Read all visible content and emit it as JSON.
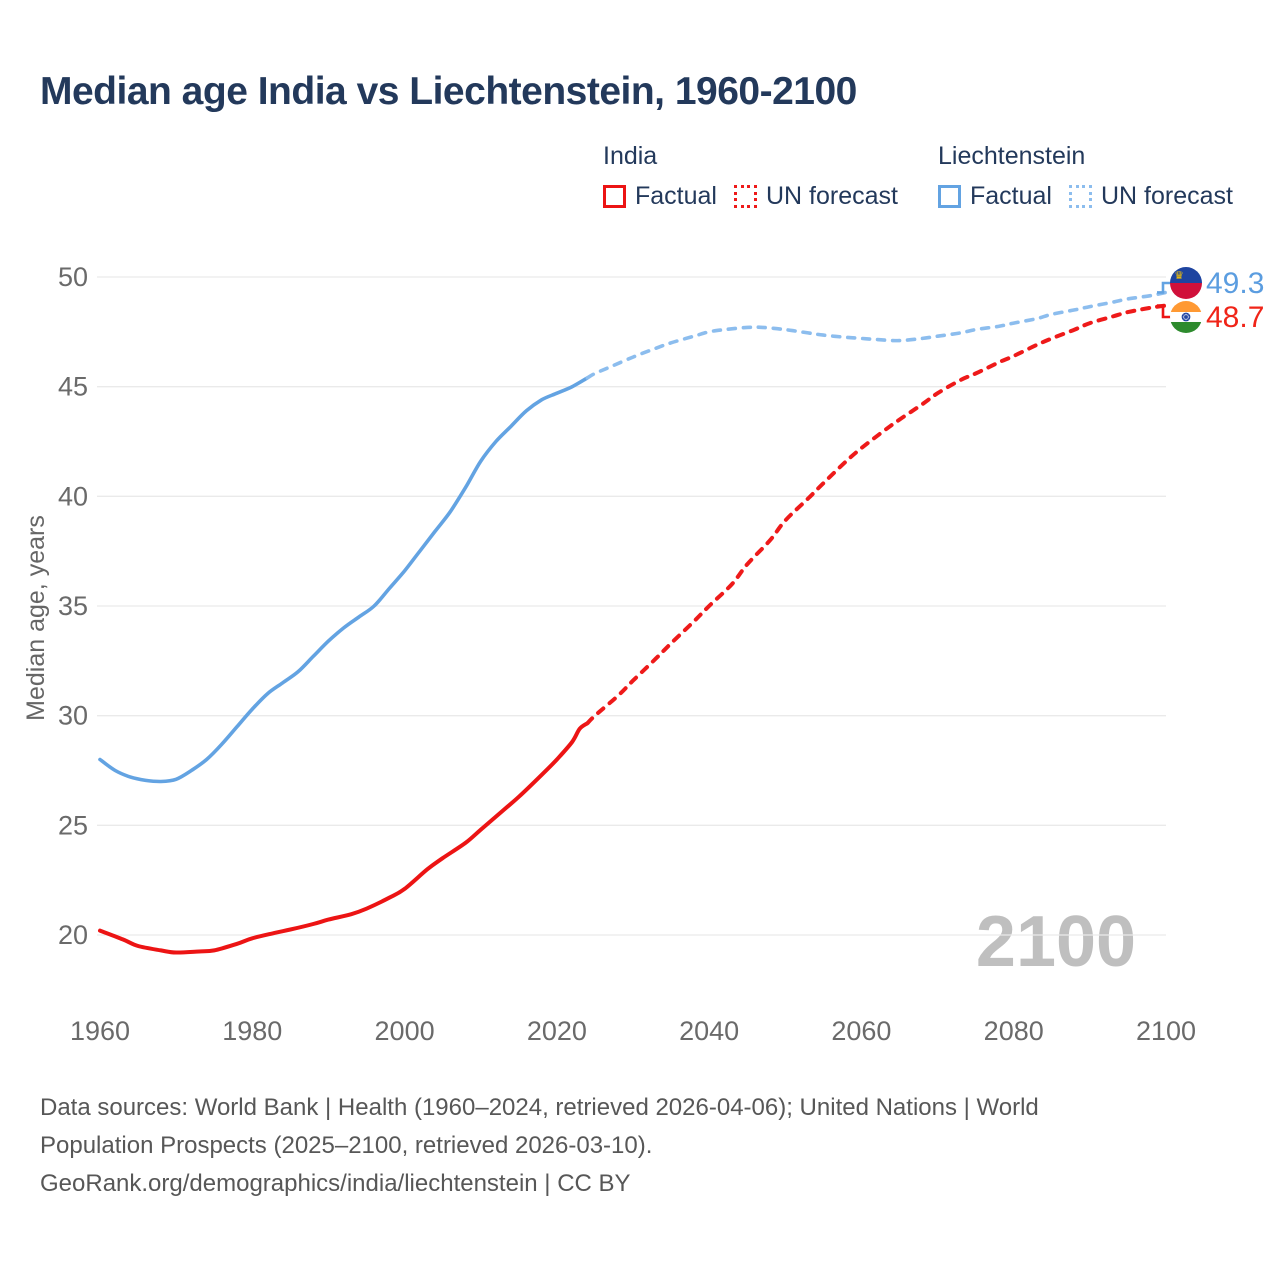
{
  "title": "Median age India vs Liechtenstein, 1960-2100",
  "watermark": "2100",
  "legend": {
    "groups": [
      {
        "name": "India",
        "color": "#ec1414",
        "forecast_color": "#ee1a1a",
        "items": [
          {
            "label": "Factual",
            "style": "solid"
          },
          {
            "label": "UN forecast",
            "style": "dotted"
          }
        ]
      },
      {
        "name": "Liechtenstein",
        "color": "#63a3e2",
        "forecast_color": "#8cbdee",
        "items": [
          {
            "label": "Factual",
            "style": "solid"
          },
          {
            "label": "UN forecast",
            "style": "dotted"
          }
        ]
      }
    ]
  },
  "footer": {
    "lines": [
      "Data sources: World Bank | Health (1960–2024, retrieved 2026-04-06); United Nations | World",
      "Population Prospects (2025–2100, retrieved 2026-03-10).",
      "GeoRank.org/demographics/india/liechtenstein | CC BY"
    ]
  },
  "chart_data": {
    "type": "line",
    "title": "Median age India vs Liechtenstein, 1960-2100",
    "xlabel": "",
    "ylabel": "Median age, years",
    "xlim": [
      1960,
      2100
    ],
    "ylim": [
      20,
      50
    ],
    "grid": "horizontal",
    "legend_position": "top",
    "x_ticks": [
      1960,
      1980,
      2000,
      2020,
      2040,
      2060,
      2080,
      2100
    ],
    "y_ticks": [
      20,
      25,
      30,
      35,
      40,
      45,
      50
    ],
    "watermark_color": "#bfbfbf",
    "gridline_color": "#eaeaea",
    "axis_text_color": "#6a6a6a",
    "series": [
      {
        "id": "liechtenstein-factual",
        "name": "Liechtenstein Factual",
        "color": "#63a3e2",
        "dash": false,
        "width": 3.6,
        "points": [
          [
            1960,
            28.0
          ],
          [
            1962,
            27.5
          ],
          [
            1964,
            27.2
          ],
          [
            1966,
            27.05
          ],
          [
            1968,
            27.0
          ],
          [
            1970,
            27.1
          ],
          [
            1972,
            27.5
          ],
          [
            1974,
            28.0
          ],
          [
            1976,
            28.7
          ],
          [
            1978,
            29.5
          ],
          [
            1980,
            30.3
          ],
          [
            1982,
            31.0
          ],
          [
            1984,
            31.5
          ],
          [
            1986,
            32.0
          ],
          [
            1988,
            32.7
          ],
          [
            1990,
            33.4
          ],
          [
            1992,
            34.0
          ],
          [
            1994,
            34.5
          ],
          [
            1996,
            35.0
          ],
          [
            1998,
            35.8
          ],
          [
            2000,
            36.6
          ],
          [
            2002,
            37.5
          ],
          [
            2004,
            38.4
          ],
          [
            2006,
            39.3
          ],
          [
            2008,
            40.4
          ],
          [
            2010,
            41.6
          ],
          [
            2012,
            42.5
          ],
          [
            2014,
            43.2
          ],
          [
            2016,
            43.9
          ],
          [
            2018,
            44.4
          ],
          [
            2020,
            44.7
          ],
          [
            2022,
            45.0
          ],
          [
            2024,
            45.4
          ]
        ]
      },
      {
        "id": "liechtenstein-forecast",
        "name": "Liechtenstein UN forecast",
        "color": "#8cbdee",
        "dash": true,
        "width": 3.6,
        "points": [
          [
            2024,
            45.4
          ],
          [
            2025,
            45.6
          ],
          [
            2027,
            45.9
          ],
          [
            2030,
            46.35
          ],
          [
            2033,
            46.75
          ],
          [
            2035,
            47.0
          ],
          [
            2038,
            47.3
          ],
          [
            2040,
            47.5
          ],
          [
            2042,
            47.6
          ],
          [
            2045,
            47.7
          ],
          [
            2047,
            47.7
          ],
          [
            2050,
            47.6
          ],
          [
            2053,
            47.45
          ],
          [
            2055,
            47.35
          ],
          [
            2058,
            47.25
          ],
          [
            2060,
            47.2
          ],
          [
            2062,
            47.15
          ],
          [
            2065,
            47.1
          ],
          [
            2068,
            47.2
          ],
          [
            2070,
            47.3
          ],
          [
            2073,
            47.45
          ],
          [
            2075,
            47.6
          ],
          [
            2078,
            47.75
          ],
          [
            2080,
            47.9
          ],
          [
            2083,
            48.1
          ],
          [
            2085,
            48.3
          ],
          [
            2088,
            48.5
          ],
          [
            2090,
            48.65
          ],
          [
            2093,
            48.85
          ],
          [
            2095,
            49.0
          ],
          [
            2098,
            49.15
          ],
          [
            2100,
            49.3
          ]
        ]
      },
      {
        "id": "india-factual",
        "name": "India Factual",
        "color": "#ec1414",
        "dash": false,
        "width": 4,
        "points": [
          [
            1960,
            20.2
          ],
          [
            1963,
            19.8
          ],
          [
            1965,
            19.5
          ],
          [
            1968,
            19.3
          ],
          [
            1970,
            19.2
          ],
          [
            1973,
            19.25
          ],
          [
            1975,
            19.3
          ],
          [
            1978,
            19.6
          ],
          [
            1980,
            19.85
          ],
          [
            1983,
            20.1
          ],
          [
            1985,
            20.25
          ],
          [
            1988,
            20.5
          ],
          [
            1990,
            20.7
          ],
          [
            1993,
            20.95
          ],
          [
            1995,
            21.2
          ],
          [
            1998,
            21.7
          ],
          [
            2000,
            22.1
          ],
          [
            2003,
            23.0
          ],
          [
            2005,
            23.5
          ],
          [
            2008,
            24.2
          ],
          [
            2010,
            24.8
          ],
          [
            2013,
            25.7
          ],
          [
            2015,
            26.3
          ],
          [
            2018,
            27.3
          ],
          [
            2020,
            28.0
          ],
          [
            2022,
            28.8
          ],
          [
            2023,
            29.4
          ],
          [
            2024,
            29.65
          ]
        ]
      },
      {
        "id": "india-forecast",
        "name": "India UN forecast",
        "color": "#ee1a1a",
        "dash": true,
        "width": 4,
        "points": [
          [
            2024,
            29.65
          ],
          [
            2025,
            30.0
          ],
          [
            2028,
            30.9
          ],
          [
            2030,
            31.6
          ],
          [
            2033,
            32.6
          ],
          [
            2035,
            33.3
          ],
          [
            2038,
            34.3
          ],
          [
            2040,
            35.0
          ],
          [
            2043,
            36.0
          ],
          [
            2045,
            36.9
          ],
          [
            2048,
            38.0
          ],
          [
            2050,
            38.9
          ],
          [
            2053,
            39.9
          ],
          [
            2055,
            40.6
          ],
          [
            2058,
            41.6
          ],
          [
            2060,
            42.2
          ],
          [
            2063,
            43.0
          ],
          [
            2065,
            43.5
          ],
          [
            2068,
            44.2
          ],
          [
            2070,
            44.7
          ],
          [
            2073,
            45.3
          ],
          [
            2075,
            45.6
          ],
          [
            2078,
            46.1
          ],
          [
            2080,
            46.4
          ],
          [
            2083,
            46.9
          ],
          [
            2085,
            47.2
          ],
          [
            2088,
            47.6
          ],
          [
            2090,
            47.9
          ],
          [
            2093,
            48.2
          ],
          [
            2095,
            48.4
          ],
          [
            2098,
            48.6
          ],
          [
            2100,
            48.7
          ]
        ]
      }
    ],
    "end_labels": [
      {
        "flag": "liechtenstein",
        "text": "49.3",
        "value": 49.3,
        "color": "#5b9de0",
        "line_color": "#63a3e2"
      },
      {
        "flag": "india",
        "text": "48.7",
        "value": 48.7,
        "color": "#f02418",
        "line_color": "#ec1414"
      }
    ],
    "flags": {
      "liechtenstein": {
        "top": "#1e44a0",
        "bottom": "#d0103a",
        "crown": "#f8c300"
      },
      "india": {
        "saffron": "#ff9933",
        "white": "#ffffff",
        "green": "#2e8b2e",
        "chakra": "#1a3e9e"
      }
    }
  }
}
